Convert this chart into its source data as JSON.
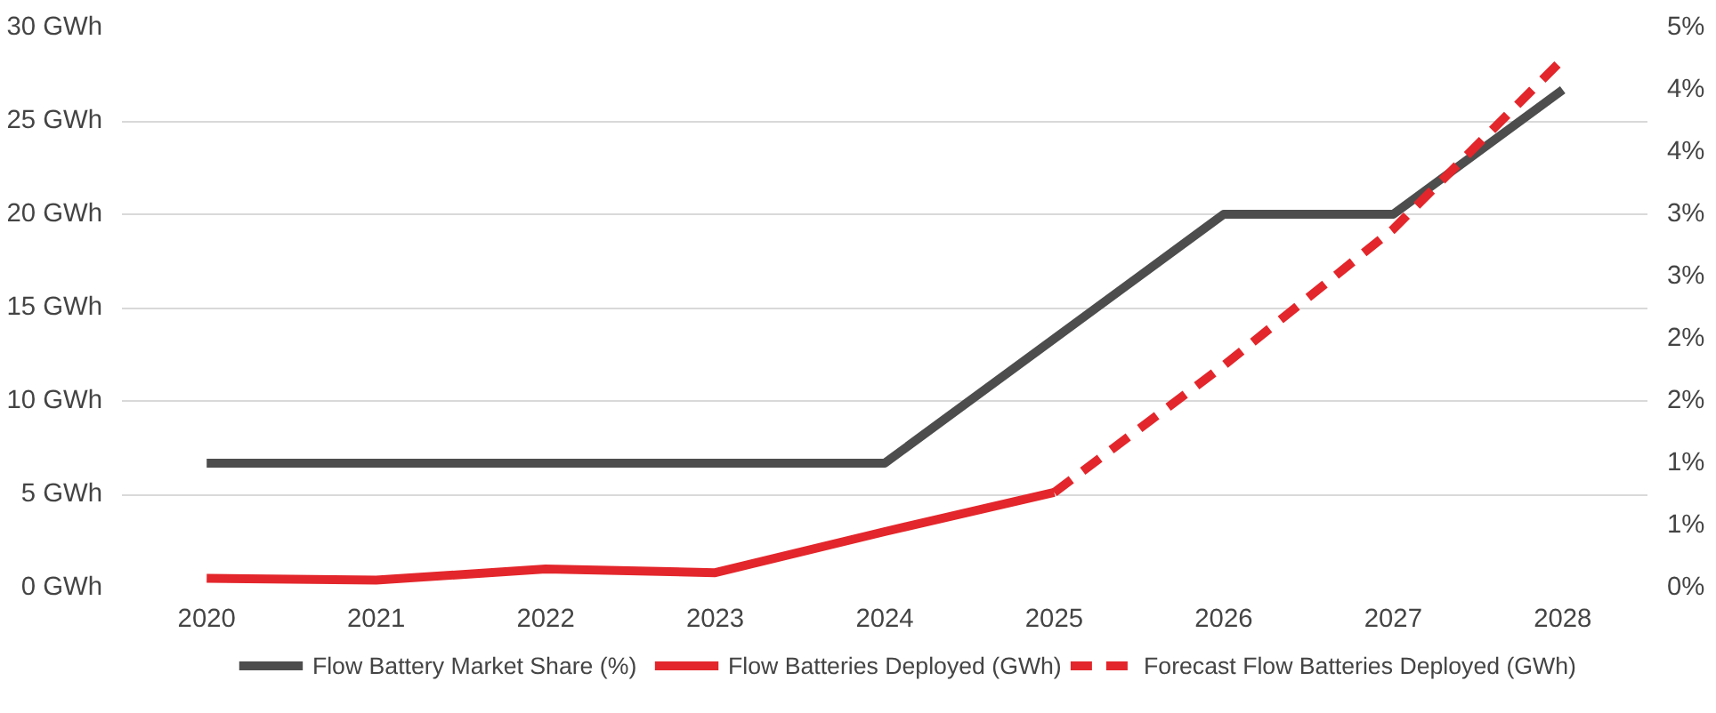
{
  "chart_data": {
    "type": "line",
    "x": [
      2020,
      2021,
      2022,
      2023,
      2024,
      2025,
      2026,
      2027,
      2028
    ],
    "xlim": [
      2019.5,
      2028.5
    ],
    "xticks": [
      2020,
      2021,
      2022,
      2023,
      2024,
      2025,
      2026,
      2027,
      2028
    ],
    "ylim": [
      0,
      30
    ],
    "yticks": [
      {
        "value": 0,
        "label": "0 GWh"
      },
      {
        "value": 5,
        "label": "5 GWh"
      },
      {
        "value": 10,
        "label": "10 GWh"
      },
      {
        "value": 15,
        "label": "15 GWh"
      },
      {
        "value": 20,
        "label": "20 GWh"
      },
      {
        "value": 25,
        "label": "25 GWh"
      },
      {
        "value": 30,
        "label": "30 GWh"
      }
    ],
    "y2lim": [
      0,
      4.5
    ],
    "y2ticks": [
      {
        "value": 0,
        "label": "0%"
      },
      {
        "value": 0.5,
        "label": "1%"
      },
      {
        "value": 1,
        "label": "1%"
      },
      {
        "value": 1.5,
        "label": "2%"
      },
      {
        "value": 2,
        "label": "2%"
      },
      {
        "value": 2.5,
        "label": "3%"
      },
      {
        "value": 3,
        "label": "3%"
      },
      {
        "value": 3.5,
        "label": "4%"
      },
      {
        "value": 4,
        "label": "4%"
      },
      {
        "value": 4.5,
        "label": "5%"
      }
    ],
    "grid": "y",
    "legend": "bottom",
    "series": [
      {
        "name": "Flow Battery Market Share (%)",
        "color": "#4d4d4d",
        "axis": "y2",
        "line_style": "solid",
        "values": [
          1.0,
          1.0,
          1.0,
          1.0,
          1.0,
          2.0,
          3.0,
          3.0,
          4.0
        ]
      },
      {
        "name": "Flow Batteries Deployed (GWh)",
        "color": "#e3262b",
        "line_style": "solid",
        "values": [
          0.5,
          0.4,
          1.0,
          0.8,
          3.0,
          5.1,
          null,
          null,
          null
        ]
      },
      {
        "name": "Forecast Flow Batteries Deployed (GWh)",
        "color": "#e3262b",
        "line_style": "dashed",
        "values": [
          null,
          null,
          null,
          null,
          null,
          5.1,
          11.9,
          19.2,
          28.3
        ]
      }
    ]
  }
}
